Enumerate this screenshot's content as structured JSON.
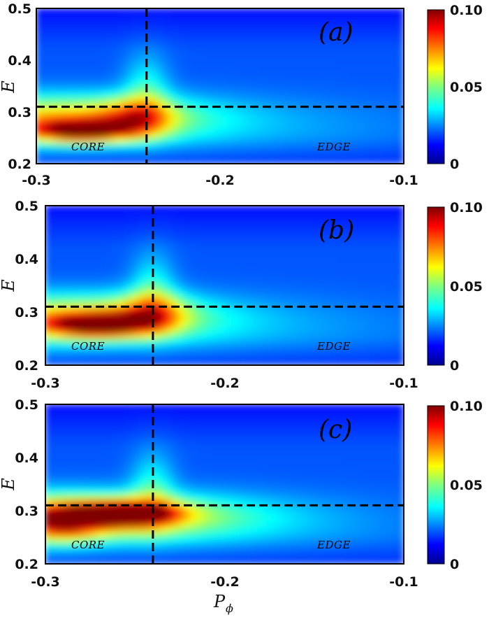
{
  "chart_data": {
    "type": "heatmap",
    "x_label": "P",
    "x_label_sub": "ϕ",
    "xlim": [
      -0.3,
      -0.1
    ],
    "x_ticks": [
      "-0.3",
      "-0.2",
      "-0.1"
    ],
    "ylim": [
      0.2,
      0.5
    ],
    "colorbar": {
      "range": [
        0,
        0.1
      ],
      "ticks": [
        "0.10",
        "0.05",
        "0"
      ],
      "colormap": "jet"
    },
    "panels": [
      {
        "label": "(a)",
        "ylabel": "E",
        "y_ticks": [
          "0.5",
          "0.4",
          "0.3",
          "0.2"
        ],
        "region_left": "CORE",
        "region_right": "EDGE",
        "dashed_vertical_x": -0.24,
        "dashed_horizontal_y": 0.31,
        "peaks": [
          {
            "x": -0.275,
            "y": 0.262,
            "value": 0.095
          },
          {
            "x": -0.245,
            "y": 0.29,
            "value": 0.07
          }
        ]
      },
      {
        "label": "(b)",
        "ylabel": "E",
        "y_ticks": [
          "0.5",
          "0.4",
          "0.3",
          "0.2"
        ],
        "region_left": "CORE",
        "region_right": "EDGE",
        "dashed_vertical_x": -0.24,
        "dashed_horizontal_y": 0.31,
        "peaks": [
          {
            "x": -0.27,
            "y": 0.275,
            "value": 0.095
          },
          {
            "x": -0.24,
            "y": 0.3,
            "value": 0.07
          }
        ]
      },
      {
        "label": "(c)",
        "ylabel": "E",
        "y_ticks": [
          "0.5",
          "0.4",
          "0.3",
          "0.2"
        ],
        "region_left": "CORE",
        "region_right": "EDGE",
        "dashed_vertical_x": -0.24,
        "dashed_horizontal_y": 0.31,
        "peaks": [
          {
            "x": -0.255,
            "y": 0.295,
            "value": 0.1
          },
          {
            "x": -0.29,
            "y": 0.275,
            "value": 0.075
          }
        ]
      }
    ]
  }
}
